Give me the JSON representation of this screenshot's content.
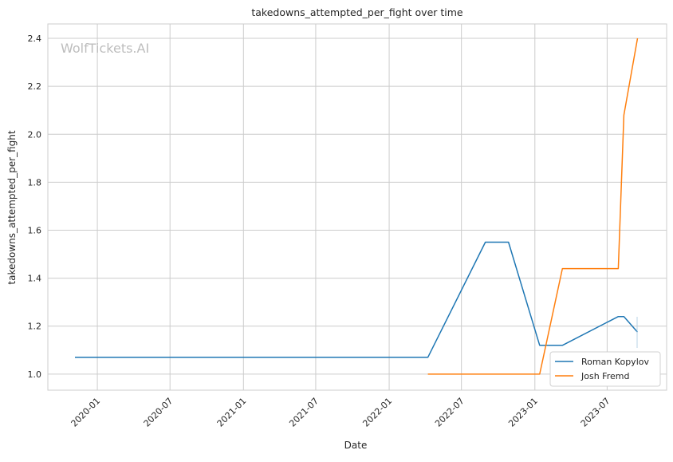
{
  "chart_data": {
    "type": "line",
    "title": "takedowns_attempted_per_fight over time",
    "xlabel": "Date",
    "ylabel": "takedowns_attempted_per_fight",
    "watermark": "WolfTickets.AI",
    "xlim": [
      "2019-08-30",
      "2023-11-27"
    ],
    "ylim": [
      0.933,
      2.46
    ],
    "x_ticks": [
      "2020-01",
      "2020-07",
      "2021-01",
      "2021-07",
      "2022-01",
      "2022-07",
      "2023-01",
      "2023-07"
    ],
    "y_ticks": [
      "1.0",
      "1.2",
      "1.4",
      "1.6",
      "1.8",
      "2.0",
      "2.2",
      "2.4"
    ],
    "grid": true,
    "legend_position": "bottom-right",
    "series": [
      {
        "name": "Roman Kopylov",
        "color": "#1f77b4",
        "x": [
          "2019-11-06",
          "2022-04-08",
          "2022-08-30",
          "2022-10-27",
          "2023-01-13",
          "2023-03-11",
          "2023-07-29",
          "2023-08-12",
          "2023-09-15"
        ],
        "y": [
          1.07,
          1.07,
          1.55,
          1.55,
          1.12,
          1.12,
          1.24,
          1.24,
          1.175
        ]
      },
      {
        "name": "Josh Fremd",
        "color": "#ff7f0e",
        "x": [
          "2022-04-08",
          "2023-01-13",
          "2023-03-11",
          "2023-07-29",
          "2023-08-12",
          "2023-09-15"
        ],
        "y": [
          1.0,
          1.0,
          1.44,
          1.44,
          2.08,
          2.4
        ]
      }
    ]
  }
}
